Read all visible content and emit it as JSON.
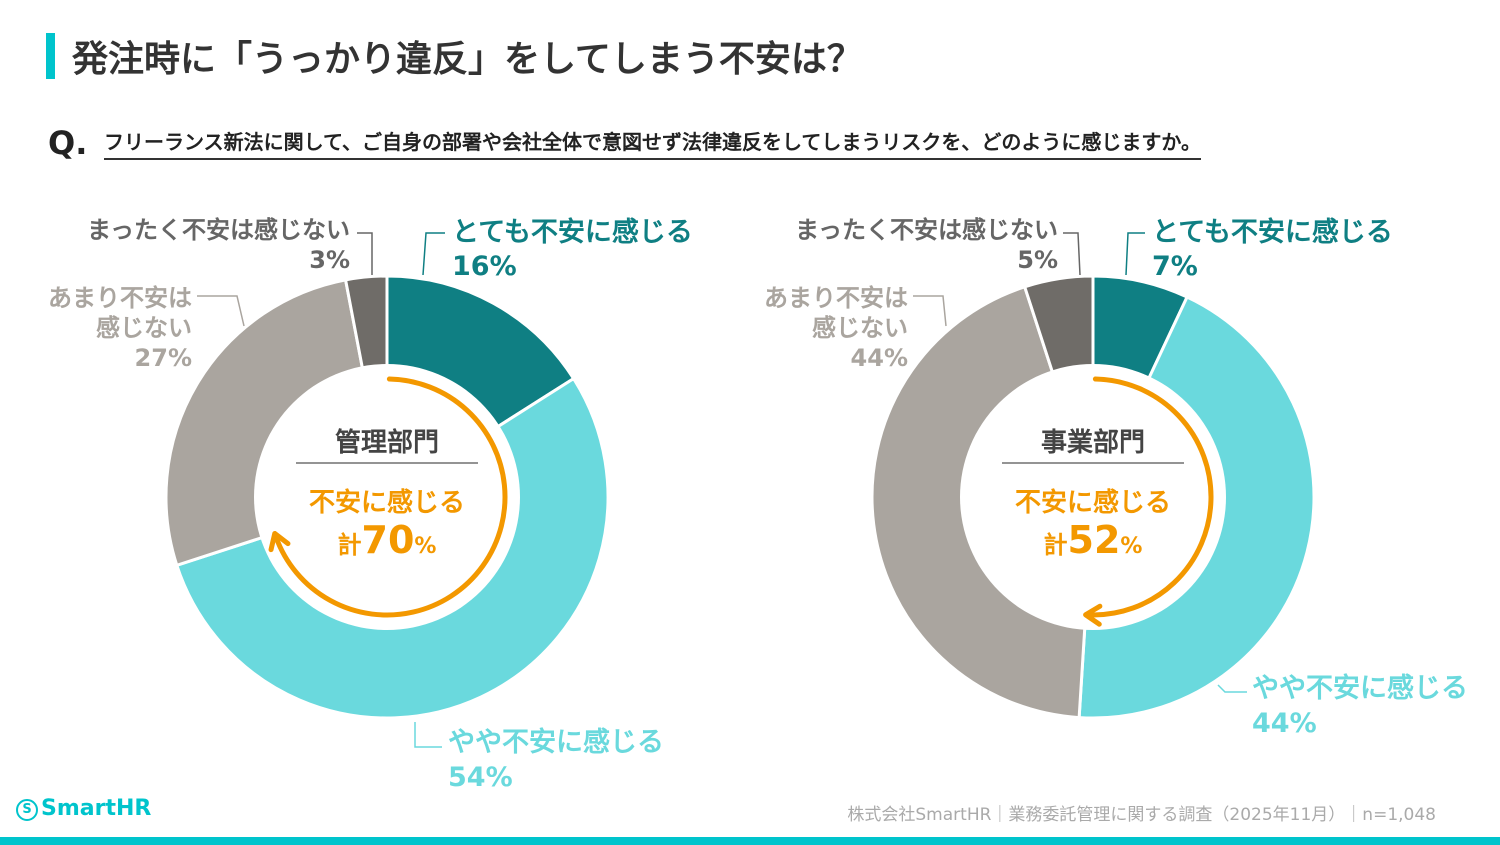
{
  "title": "発注時に「うっかり違反」をしてしまう不安は？",
  "question": {
    "mark": "Q.",
    "text": "フリーランス新法に関して、ご自身の部署や会社全体で意図せず法律違反をしてしまうリスクを、どのように感じますか。"
  },
  "colors": {
    "very": "#0f7f83",
    "somewhat": "#6ad9dd",
    "not_very": "#aaa59f",
    "not_at_all": "#6f6c68",
    "accent": "#f39800",
    "brand": "#00c4cc"
  },
  "chart_data": [
    {
      "type": "pie",
      "donut": true,
      "center_title": "管理部門",
      "center_sub": "不安に感じる",
      "center_total_prefix": "計",
      "center_total": "70",
      "center_total_unit": "%",
      "categories": [
        "とても不安に感じる",
        "やや不安に感じる",
        "あまり不安は感じない",
        "まったく不安は感じない"
      ],
      "values": [
        16,
        54,
        27,
        3
      ],
      "value_labels": [
        "16%",
        "54%",
        "27%",
        "3%"
      ],
      "label_lines": [
        "あまり不安は",
        "感じない"
      ]
    },
    {
      "type": "pie",
      "donut": true,
      "center_title": "事業部門",
      "center_sub": "不安に感じる",
      "center_total_prefix": "計",
      "center_total": "52",
      "center_total_unit": "%",
      "categories": [
        "とても不安に感じる",
        "やや不安に感じる",
        "あまり不安は感じない",
        "まったく不安は感じない"
      ],
      "values": [
        7,
        44,
        44,
        5
      ],
      "value_labels": [
        "7%",
        "44%",
        "44%",
        "5%"
      ],
      "label_lines": [
        "あまり不安は",
        "感じない"
      ]
    }
  ],
  "logo": "SmartHR",
  "logo_mark": "S",
  "footer": "株式会社SmartHR｜業務委託管理に関する調査（2025年11月）｜n=1,048"
}
